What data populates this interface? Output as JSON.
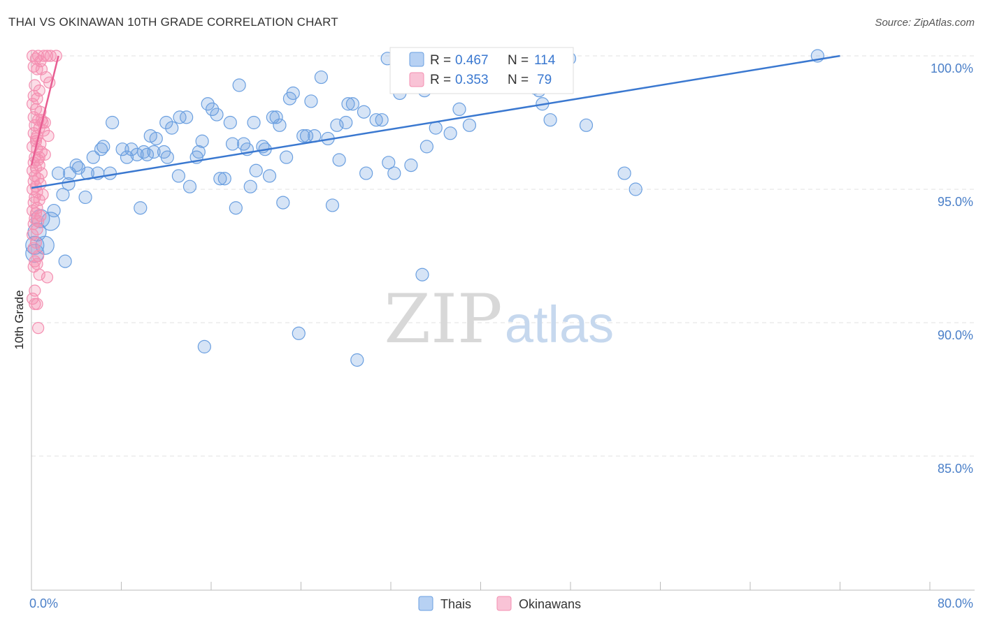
{
  "chart_data": {
    "type": "scatter",
    "title": "THAI VS OKINAWAN 10TH GRADE CORRELATION CHART",
    "source": "Source: ZipAtlas.com",
    "ylabel": "10th Grade",
    "xlabel": "",
    "xlim": [
      0,
      80
    ],
    "ylim": [
      80.0,
      100.5
    ],
    "x_tick_labels": [
      {
        "value": 0,
        "label": "0.0%"
      },
      {
        "value": 80,
        "label": "80.0%"
      }
    ],
    "y_tick_labels": [
      {
        "value": 100,
        "label": "100.0%"
      },
      {
        "value": 95,
        "label": "95.0%"
      },
      {
        "value": 90,
        "label": "90.0%"
      },
      {
        "value": 85,
        "label": "85.0%"
      }
    ],
    "watermark": {
      "zip": "ZIP",
      "atlas": "atlas"
    },
    "stats": [
      {
        "series": "Thais",
        "r_label": "R =",
        "r": "0.467",
        "n_label": "N =",
        "n": "114",
        "color": "#6a9fe0"
      },
      {
        "series": "Okinawans",
        "r_label": "R =",
        "r": "0.353",
        "n_label": "N =",
        "n": "79",
        "color": "#f48fb1"
      }
    ],
    "series": [
      {
        "name": "Thais",
        "color": "#6a9fe0",
        "line_color": "#3a78d0",
        "trend": {
          "x0": 0,
          "y0": 95.05,
          "x1": 72,
          "y1": 100.0
        },
        "points": [
          [
            0.3,
            92.9
          ],
          [
            0.3,
            92.6
          ],
          [
            0.5,
            93.4
          ],
          [
            0.8,
            93.9
          ],
          [
            1.2,
            92.9
          ],
          [
            1.7,
            93.8
          ],
          [
            2.0,
            94.2
          ],
          [
            2.8,
            94.8
          ],
          [
            3.0,
            92.3
          ],
          [
            3.3,
            95.2
          ],
          [
            2.4,
            95.6
          ],
          [
            3.4,
            95.6
          ],
          [
            4.2,
            95.8
          ],
          [
            4.0,
            95.9
          ],
          [
            5.0,
            95.6
          ],
          [
            5.9,
            95.6
          ],
          [
            7.0,
            95.6
          ],
          [
            4.8,
            94.7
          ],
          [
            5.5,
            96.2
          ],
          [
            6.2,
            96.5
          ],
          [
            6.4,
            96.6
          ],
          [
            7.2,
            97.5
          ],
          [
            8.1,
            96.5
          ],
          [
            8.5,
            96.2
          ],
          [
            8.9,
            96.5
          ],
          [
            9.4,
            96.3
          ],
          [
            9.7,
            94.3
          ],
          [
            10.0,
            96.4
          ],
          [
            10.3,
            96.3
          ],
          [
            10.6,
            97.0
          ],
          [
            10.9,
            96.4
          ],
          [
            11.1,
            96.9
          ],
          [
            11.8,
            96.4
          ],
          [
            12.1,
            96.2
          ],
          [
            12.0,
            97.5
          ],
          [
            12.5,
            97.3
          ],
          [
            13.2,
            97.7
          ],
          [
            13.8,
            97.7
          ],
          [
            13.1,
            95.5
          ],
          [
            14.1,
            95.1
          ],
          [
            14.7,
            96.2
          ],
          [
            14.9,
            96.4
          ],
          [
            15.2,
            96.8
          ],
          [
            15.4,
            89.1
          ],
          [
            15.7,
            98.2
          ],
          [
            16.1,
            98.0
          ],
          [
            16.5,
            97.8
          ],
          [
            16.8,
            95.4
          ],
          [
            17.2,
            95.4
          ],
          [
            17.7,
            97.5
          ],
          [
            17.9,
            96.7
          ],
          [
            18.2,
            94.3
          ],
          [
            18.5,
            98.9
          ],
          [
            18.9,
            96.7
          ],
          [
            19.2,
            96.5
          ],
          [
            19.5,
            95.1
          ],
          [
            19.8,
            97.5
          ],
          [
            20.0,
            95.7
          ],
          [
            20.6,
            96.6
          ],
          [
            20.8,
            96.5
          ],
          [
            21.2,
            95.5
          ],
          [
            21.5,
            97.7
          ],
          [
            21.8,
            97.7
          ],
          [
            22.1,
            97.4
          ],
          [
            22.4,
            94.5
          ],
          [
            22.7,
            96.2
          ],
          [
            23.0,
            98.4
          ],
          [
            23.3,
            98.6
          ],
          [
            23.8,
            89.6
          ],
          [
            24.2,
            97.0
          ],
          [
            24.5,
            97.0
          ],
          [
            24.9,
            98.3
          ],
          [
            25.2,
            97.0
          ],
          [
            25.8,
            99.2
          ],
          [
            26.4,
            96.9
          ],
          [
            26.8,
            94.4
          ],
          [
            27.2,
            97.4
          ],
          [
            27.4,
            96.1
          ],
          [
            28.2,
            98.2
          ],
          [
            28.6,
            98.2
          ],
          [
            29.0,
            88.6
          ],
          [
            29.6,
            97.9
          ],
          [
            29.8,
            95.6
          ],
          [
            30.7,
            97.6
          ],
          [
            31.2,
            97.6
          ],
          [
            31.8,
            96.0
          ],
          [
            32.3,
            95.6
          ],
          [
            32.8,
            98.6
          ],
          [
            33.2,
            99.9
          ],
          [
            33.8,
            95.9
          ],
          [
            34.4,
            99.3
          ],
          [
            34.8,
            91.8
          ],
          [
            35.2,
            96.6
          ],
          [
            35.5,
            99.0
          ],
          [
            36.0,
            97.3
          ],
          [
            36.6,
            99.2
          ],
          [
            37.3,
            97.1
          ],
          [
            38.1,
            98.0
          ],
          [
            39.0,
            97.4
          ],
          [
            39.3,
            99.9
          ],
          [
            40.3,
            99.9
          ],
          [
            44.8,
            98.8
          ],
          [
            44.9,
            99.0
          ],
          [
            45.2,
            98.7
          ],
          [
            45.5,
            98.2
          ],
          [
            46.2,
            97.6
          ],
          [
            47.9,
            99.9
          ],
          [
            49.4,
            97.4
          ],
          [
            52.8,
            95.6
          ],
          [
            53.8,
            95.0
          ],
          [
            70.0,
            100.0
          ],
          [
            35.0,
            98.7
          ],
          [
            31.7,
            99.9
          ],
          [
            28.0,
            97.5
          ]
        ]
      },
      {
        "name": "Okinawans",
        "color": "#f48fb1",
        "line_color": "#e85d92",
        "trend": {
          "x0": 0,
          "y0": 95.9,
          "x1": 2.4,
          "y1": 100.0
        },
        "points": [
          [
            0.1,
            100.0
          ],
          [
            0.6,
            100.0
          ],
          [
            1.1,
            100.0
          ],
          [
            1.4,
            100.0
          ],
          [
            1.7,
            100.0
          ],
          [
            2.2,
            100.0
          ],
          [
            0.4,
            99.9
          ],
          [
            0.8,
            99.8
          ],
          [
            0.2,
            99.6
          ],
          [
            0.5,
            99.5
          ],
          [
            0.9,
            99.5
          ],
          [
            1.3,
            99.2
          ],
          [
            1.6,
            99.0
          ],
          [
            0.3,
            98.9
          ],
          [
            0.7,
            98.7
          ],
          [
            0.2,
            98.5
          ],
          [
            0.5,
            98.4
          ],
          [
            0.1,
            98.2
          ],
          [
            0.4,
            98.0
          ],
          [
            0.8,
            97.9
          ],
          [
            0.2,
            97.7
          ],
          [
            0.6,
            97.6
          ],
          [
            1.0,
            97.5
          ],
          [
            0.3,
            97.4
          ],
          [
            0.7,
            97.3
          ],
          [
            1.1,
            97.2
          ],
          [
            0.2,
            97.1
          ],
          [
            0.5,
            97.0
          ],
          [
            1.5,
            97.0
          ],
          [
            0.4,
            96.9
          ],
          [
            0.8,
            96.7
          ],
          [
            0.1,
            96.6
          ],
          [
            0.5,
            96.5
          ],
          [
            0.9,
            96.4
          ],
          [
            1.2,
            96.3
          ],
          [
            0.3,
            96.2
          ],
          [
            0.6,
            96.1
          ],
          [
            0.2,
            96.0
          ],
          [
            0.7,
            95.9
          ],
          [
            0.4,
            95.8
          ],
          [
            0.1,
            95.7
          ],
          [
            0.9,
            95.6
          ],
          [
            0.3,
            95.5
          ],
          [
            0.6,
            95.4
          ],
          [
            0.2,
            95.3
          ],
          [
            0.8,
            95.2
          ],
          [
            0.4,
            95.1
          ],
          [
            0.1,
            95.0
          ],
          [
            0.5,
            94.9
          ],
          [
            1.0,
            94.8
          ],
          [
            0.3,
            94.7
          ],
          [
            0.7,
            94.6
          ],
          [
            0.2,
            94.5
          ],
          [
            0.5,
            94.3
          ],
          [
            0.1,
            94.2
          ],
          [
            0.4,
            94.1
          ],
          [
            0.8,
            94.0
          ],
          [
            0.3,
            93.9
          ],
          [
            0.6,
            93.8
          ],
          [
            0.2,
            93.7
          ],
          [
            0.5,
            93.5
          ],
          [
            0.1,
            93.3
          ],
          [
            0.4,
            93.0
          ],
          [
            0.2,
            92.8
          ],
          [
            0.6,
            92.5
          ],
          [
            0.3,
            92.3
          ],
          [
            0.5,
            92.2
          ],
          [
            0.2,
            92.1
          ],
          [
            0.7,
            91.8
          ],
          [
            1.4,
            91.7
          ],
          [
            0.3,
            91.2
          ],
          [
            0.1,
            90.9
          ],
          [
            0.5,
            90.7
          ],
          [
            0.3,
            90.7
          ],
          [
            0.6,
            89.8
          ],
          [
            0.9,
            97.6
          ],
          [
            1.2,
            97.5
          ],
          [
            0.4,
            96.8
          ],
          [
            0.7,
            96.2
          ]
        ]
      }
    ],
    "legend": [
      {
        "label": "Thais",
        "color": "#6a9fe0"
      },
      {
        "label": "Okinawans",
        "color": "#f48fb1"
      }
    ]
  }
}
